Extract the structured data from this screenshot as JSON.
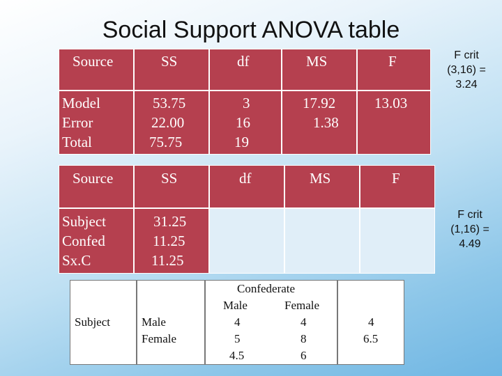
{
  "title": "Social Support ANOVA table",
  "table1": {
    "headers": [
      "Source",
      "SS",
      "df",
      "MS",
      "F"
    ],
    "sources": [
      "Model",
      "Error",
      "Total"
    ],
    "ss": [
      "53.75",
      "22.00",
      "75.75"
    ],
    "df": [
      "3",
      "16",
      "19"
    ],
    "ms": [
      "17.92",
      "1.38"
    ],
    "f": "13.03"
  },
  "fcrit1": [
    "F crit",
    "(3,16) =",
    "3.24"
  ],
  "table2": {
    "headers": [
      "Source",
      "SS",
      "df",
      "MS",
      "F"
    ],
    "sources": [
      "Subject",
      "Confed",
      "Sx.C"
    ],
    "ss": [
      "31.25",
      "11.25",
      "11.25"
    ]
  },
  "fcrit2": [
    "F crit",
    "(1,16) =",
    "4.49"
  ],
  "means": {
    "row_factor": "Subject",
    "rows": [
      "Male",
      "Female"
    ],
    "col_factor": "Confederate",
    "cols": [
      "Male",
      "Female"
    ],
    "cells": [
      [
        "4",
        "4"
      ],
      [
        "5",
        "8"
      ]
    ],
    "col_means": [
      "4.5",
      "6"
    ],
    "row_means": [
      "4",
      "6.5"
    ]
  },
  "colors": {
    "header": "#b5404f",
    "body": "#e0eef8",
    "bg_bottom": "#6fb6e3"
  }
}
